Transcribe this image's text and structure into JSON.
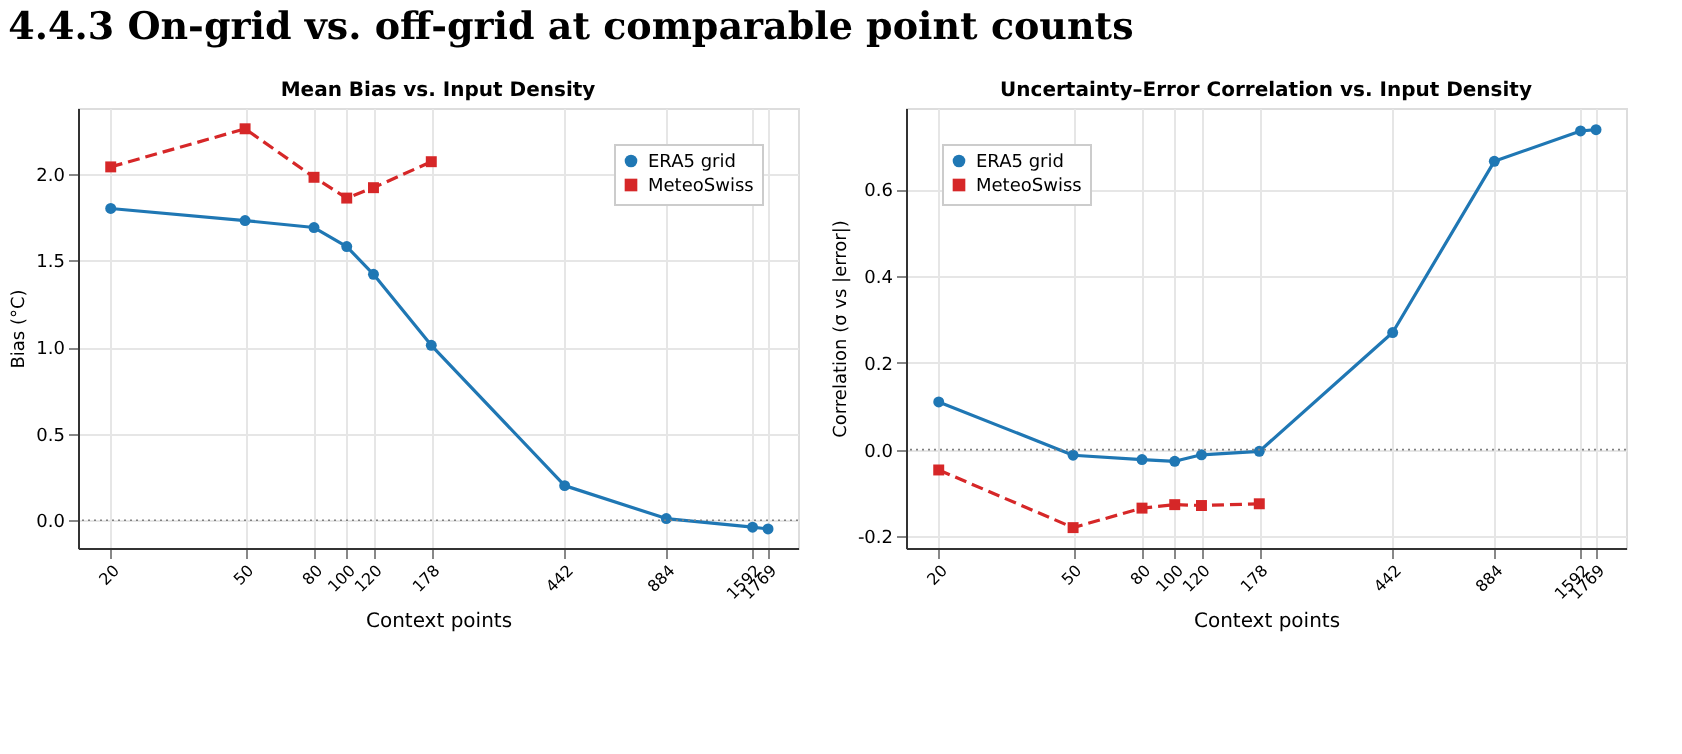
{
  "chart_data": [
    {
      "type": "line",
      "title": "Mean Bias vs. Input Density",
      "annotations": [
        "4.4.3   On-grid vs. off-grid at comparable point counts"
      ],
      "xlabel": "Context points",
      "ylabel": "Bias (°C)",
      "log": "x",
      "grid": true,
      "legend": "top right",
      "xlim": [
        16,
        2170
      ],
      "xticks": [
        20,
        50,
        80,
        100,
        120,
        178,
        442,
        884,
        1592,
        1769
      ],
      "ylim": [
        -0.16,
        2.38
      ],
      "yticks": [
        {
          "value": 0,
          "label": "0.0"
        },
        0.5,
        {
          "value": 1,
          "label": "1.0"
        },
        1.5,
        {
          "value": 2,
          "label": "2.0"
        }
      ],
      "ref_lines": [
        {
          "axis": "y",
          "value": 0,
          "line_style": "dotted",
          "color": "#808080"
        }
      ],
      "series": [
        {
          "name": "ERA5 grid",
          "color": "#1f77b4",
          "marker": "circle",
          "line_style": "solid",
          "x": [
            20,
            50,
            80,
            100,
            120,
            178,
            442,
            884,
            1592,
            1769
          ],
          "values": [
            1.8,
            1.73,
            1.69,
            1.58,
            1.42,
            1.01,
            0.2,
            0.01,
            -0.04,
            -0.05
          ]
        },
        {
          "name": "MeteoSwiss",
          "color": "#d62728",
          "marker": "square",
          "line_style": "dashed",
          "x": [
            20,
            50,
            80,
            100,
            120,
            178
          ],
          "values": [
            2.04,
            2.26,
            1.98,
            1.86,
            1.92,
            2.07
          ]
        }
      ]
    },
    {
      "type": "line",
      "title": "Uncertainty–Error Correlation vs. Input Density",
      "xlabel": "Context points",
      "ylabel": "Correlation (σ vs |error|)",
      "log": "x",
      "grid": true,
      "legend": "top left",
      "xlim": [
        16,
        2170
      ],
      "xticks": [
        20,
        50,
        80,
        100,
        120,
        178,
        442,
        884,
        1592,
        1769
      ],
      "ylim": [
        -0.227,
        0.788
      ],
      "yticks": [
        -0.2,
        {
          "value": 0,
          "label": "0.0"
        },
        0.2,
        0.4,
        0.6
      ],
      "ref_lines": [
        {
          "axis": "y",
          "value": 0,
          "line_style": "dotted",
          "color": "#808080"
        }
      ],
      "series": [
        {
          "name": "ERA5 grid",
          "color": "#1f77b4",
          "marker": "circle",
          "line_style": "solid",
          "x": [
            20,
            50,
            80,
            100,
            120,
            178,
            442,
            884,
            1592,
            1769
          ],
          "values": [
            0.11,
            -0.013,
            -0.023,
            -0.027,
            -0.012,
            -0.004,
            0.27,
            0.665,
            0.735,
            0.738
          ]
        },
        {
          "name": "MeteoSwiss",
          "color": "#d62728",
          "marker": "square",
          "line_style": "dashed",
          "x": [
            20,
            50,
            80,
            100,
            120,
            178
          ],
          "values": [
            -0.047,
            -0.18,
            -0.135,
            -0.127,
            -0.129,
            -0.125
          ]
        }
      ]
    }
  ]
}
